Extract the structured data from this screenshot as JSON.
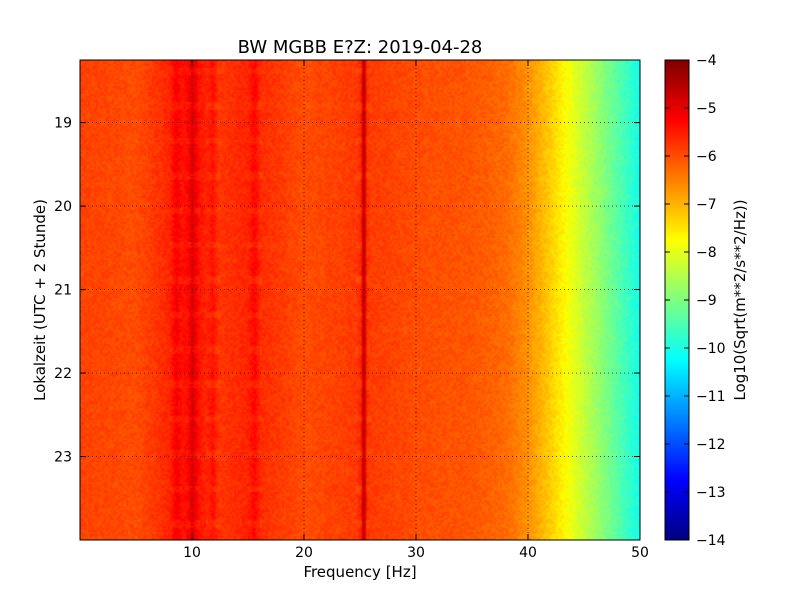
{
  "chart_data": {
    "type": "heatmap",
    "title": "BW MGBB E?Z: 2019-04-28",
    "xlabel": "Frequency [Hz]",
    "ylabel": "Lokalzeit (UTC + 2 Stunde)",
    "xlim": [
      0,
      50
    ],
    "ylim_hours": [
      18.25,
      24.0
    ],
    "y_inverted": true,
    "x_ticks": [
      10,
      20,
      30,
      40,
      50
    ],
    "x_tick_labels": [
      "10",
      "20",
      "30",
      "40",
      "50"
    ],
    "y_ticks": [
      19,
      20,
      21,
      22,
      23
    ],
    "y_tick_labels": [
      "19",
      "20",
      "21",
      "22",
      "23"
    ],
    "grid": true,
    "colormap": "jet",
    "colorbar": {
      "label": "Log10(Sqrt(m**2/s**2/Hz))",
      "range": [
        -14,
        -4
      ],
      "ticks": [
        -4,
        -5,
        -6,
        -7,
        -8,
        -9,
        -10,
        -11,
        -12,
        -13,
        -14
      ],
      "tick_labels": [
        "−4",
        "−5",
        "−6",
        "−7",
        "−8",
        "−9",
        "−10",
        "−11",
        "−12",
        "−13",
        "−14"
      ]
    },
    "spectral_profile": {
      "frequency_hz": [
        0,
        5,
        8,
        10,
        12,
        15,
        20,
        25,
        30,
        35,
        38,
        40,
        42,
        44,
        46,
        48,
        50
      ],
      "log10_amplitude": [
        -5.9,
        -6.0,
        -5.6,
        -5.3,
        -5.8,
        -5.6,
        -6.0,
        -5.8,
        -6.0,
        -6.1,
        -6.3,
        -6.7,
        -7.3,
        -8.0,
        -8.7,
        -9.4,
        -10.1
      ]
    },
    "peak_lines_hz": [
      8.5,
      10,
      11.8,
      15.5,
      25.2
    ],
    "dark_line_hz": [
      25.2
    ],
    "colors": {
      "background": "#ffffff",
      "axes": "#000000"
    }
  }
}
